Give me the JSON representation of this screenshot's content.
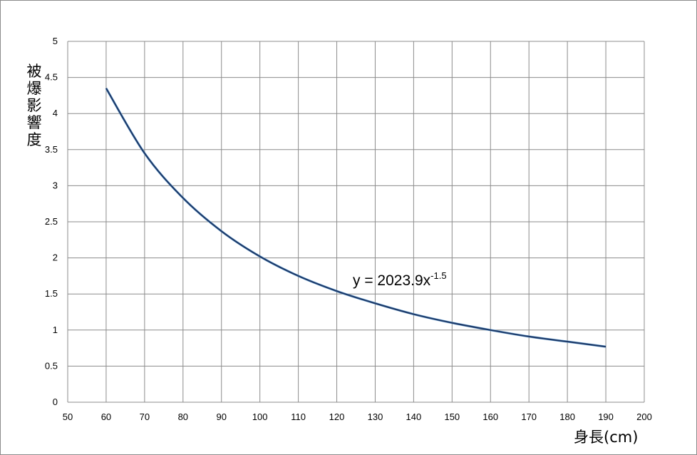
{
  "chart_data": {
    "type": "line",
    "title": "",
    "xlabel": "身長(cm)",
    "ylabel": "被爆影響度",
    "xlim": [
      50,
      200
    ],
    "ylim": [
      0,
      5
    ],
    "x_ticks": [
      "50",
      "60",
      "70",
      "80",
      "90",
      "100",
      "110",
      "120",
      "130",
      "140",
      "150",
      "160",
      "170",
      "180",
      "190",
      "200"
    ],
    "y_ticks": [
      "0",
      "0.5",
      "1",
      "1.5",
      "2",
      "2.5",
      "3",
      "3.5",
      "4",
      "4.5",
      "5"
    ],
    "grid": true,
    "legend": "none",
    "line_color": "#1f3864",
    "series": [
      {
        "x": [
          60,
          70,
          80,
          90,
          100,
          110,
          120,
          130,
          140,
          150,
          160,
          170,
          180,
          190
        ],
        "y": [
          4.35,
          3.45,
          2.83,
          2.37,
          2.02,
          1.75,
          1.54,
          1.37,
          1.22,
          1.1,
          1.0,
          0.91,
          0.84,
          0.77
        ]
      }
    ],
    "annotations": [
      {
        "text": "y = 2023.9x",
        "superscript": "-1.5",
        "x": 124,
        "y": 1.65
      }
    ]
  }
}
